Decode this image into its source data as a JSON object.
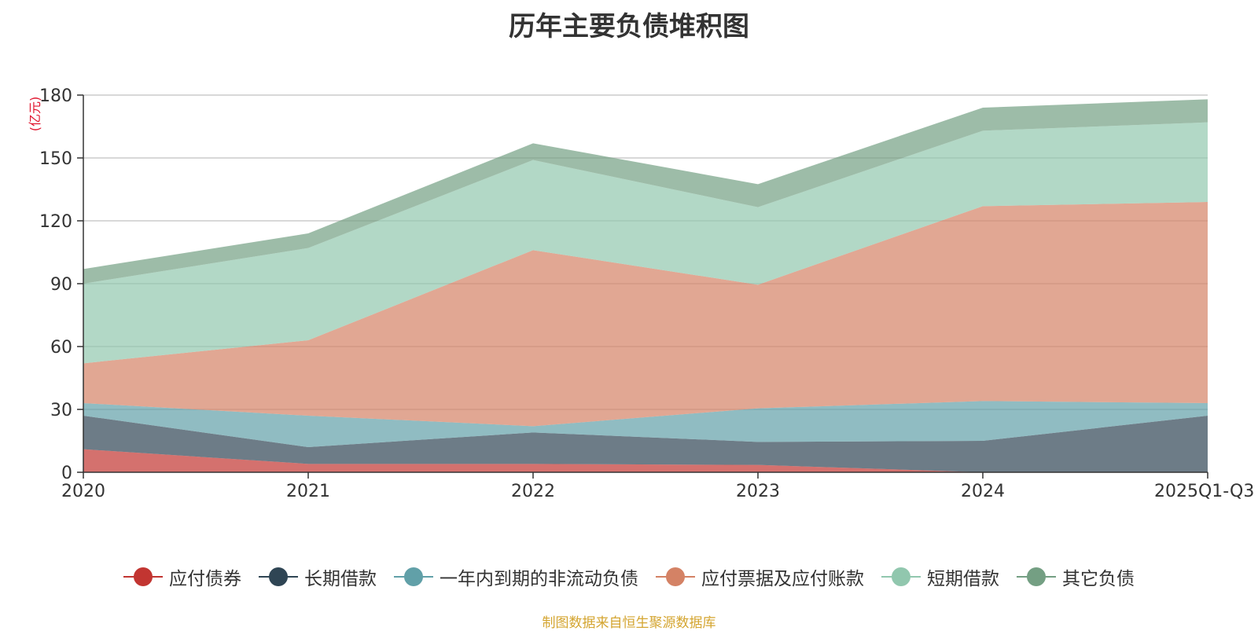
{
  "chart_data": {
    "type": "area",
    "stacked": true,
    "title": "历年主要负债堆积图",
    "ylabel": "(亿元)",
    "xlabel": "",
    "categories": [
      "2020",
      "2021",
      "2022",
      "2023",
      "2024",
      "2025Q1-Q3"
    ],
    "ylim": [
      0,
      180
    ],
    "yticks": [
      0,
      30,
      60,
      90,
      120,
      150,
      180
    ],
    "grid": true,
    "legend_position": "bottom",
    "series": [
      {
        "name": "应付债券",
        "values": [
          11,
          4,
          4,
          3.5,
          0,
          0
        ]
      },
      {
        "name": "长期借款",
        "values": [
          16,
          8,
          15,
          11,
          15,
          27
        ]
      },
      {
        "name": "一年内到期的非流动负债",
        "values": [
          6,
          15,
          3,
          16,
          19,
          6
        ]
      },
      {
        "name": "应付票据及应付账款",
        "values": [
          19,
          36,
          84,
          59,
          93,
          96
        ]
      },
      {
        "name": "短期借款",
        "values": [
          38,
          44,
          43,
          37,
          36,
          38
        ]
      },
      {
        "name": "其它负债",
        "values": [
          7,
          7,
          8,
          11,
          11,
          11
        ]
      }
    ],
    "colors": [
      "#c23531",
      "#2f4554",
      "#61a0a8",
      "#d48265",
      "#91c7ae",
      "#749f83"
    ],
    "source_note": "制图数据来自恒生聚源数据库"
  }
}
